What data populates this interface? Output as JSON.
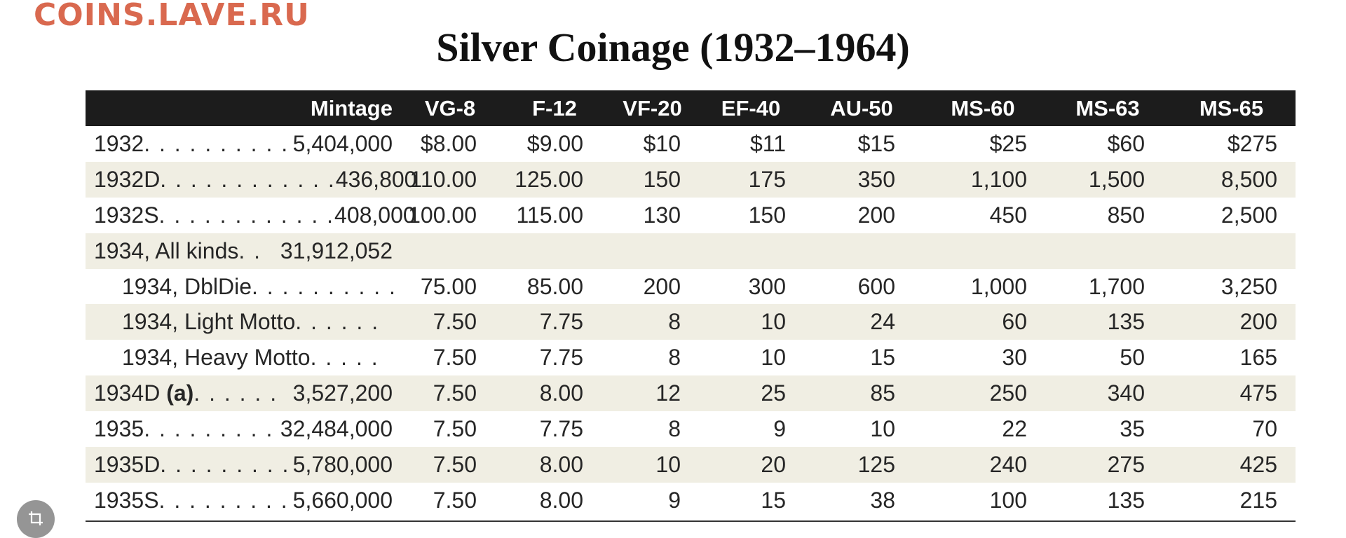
{
  "watermark": "COINS.LAVE.RU",
  "title": "Silver Coinage (1932–1964)",
  "table": {
    "headers": [
      "Mintage",
      "VG-8",
      "F-12",
      "VF-20",
      "EF-40",
      "AU-50",
      "MS-60",
      "MS-63",
      "MS-65"
    ],
    "rows": [
      {
        "label": "1932",
        "dots": " . . . . . . . . . . ",
        "mintage": "5,404,000",
        "values": [
          "$8.00",
          "$9.00",
          "$10",
          "$11",
          "$15",
          "$25",
          "$60",
          "$275"
        ],
        "shade": false,
        "indent": false
      },
      {
        "label": "1932D",
        "dots": " . . . . . . . . . . . .",
        "mintage": "436,800",
        "values": [
          "110.00",
          "125.00",
          "150",
          "175",
          "350",
          "1,100",
          "1,500",
          "8,500"
        ],
        "shade": true,
        "indent": false
      },
      {
        "label": "1932S",
        "dots": " . . . . . . . . . . . .",
        "mintage": "408,000",
        "values": [
          "100.00",
          "115.00",
          "130",
          "150",
          "200",
          "450",
          "850",
          "2,500"
        ],
        "shade": false,
        "indent": false
      },
      {
        "label": "1934, All kinds",
        "dots": ". . ",
        "mintage": "31,912,052",
        "values": [
          "",
          "",
          "",
          "",
          "",
          "",
          "",
          ""
        ],
        "shade": true,
        "indent": false
      },
      {
        "label": "1934, DblDie",
        "dots": " . . . . . . . . . .",
        "mintage": "",
        "values": [
          "75.00",
          "85.00",
          "200",
          "300",
          "600",
          "1,000",
          "1,700",
          "3,250"
        ],
        "shade": false,
        "indent": true
      },
      {
        "label": "1934, Light Motto",
        "dots": " . . . . . .",
        "mintage": "",
        "values": [
          "7.50",
          "7.75",
          "8",
          "10",
          "24",
          "60",
          "135",
          "200"
        ],
        "shade": true,
        "indent": true
      },
      {
        "label": "1934, Heavy Motto",
        "dots": " . . . . .",
        "mintage": "",
        "values": [
          "7.50",
          "7.75",
          "8",
          "10",
          "15",
          "30",
          "50",
          "165"
        ],
        "shade": false,
        "indent": true
      },
      {
        "label": "1934D",
        "label_suffix": "(a)",
        "dots": " . . . . . . ",
        "mintage": "3,527,200",
        "values": [
          "7.50",
          "8.00",
          "12",
          "25",
          "85",
          "250",
          "340",
          "475"
        ],
        "shade": true,
        "indent": false
      },
      {
        "label": "1935",
        "dots": " . . . . . . . . . ",
        "mintage": "32,484,000",
        "values": [
          "7.50",
          "7.75",
          "8",
          "9",
          "10",
          "22",
          "35",
          "70"
        ],
        "shade": false,
        "indent": false
      },
      {
        "label": "1935D",
        "dots": " . . . . . . . . . ",
        "mintage": "5,780,000",
        "values": [
          "7.50",
          "8.00",
          "10",
          "20",
          "125",
          "240",
          "275",
          "425"
        ],
        "shade": true,
        "indent": false
      },
      {
        "label": "1935S",
        "dots": " . . . . . . . . . ",
        "mintage": "5,660,000",
        "values": [
          "7.50",
          "8.00",
          "9",
          "15",
          "38",
          "100",
          "135",
          "215"
        ],
        "shade": false,
        "indent": false
      }
    ]
  },
  "crop_button": {
    "icon": "crop-icon"
  }
}
